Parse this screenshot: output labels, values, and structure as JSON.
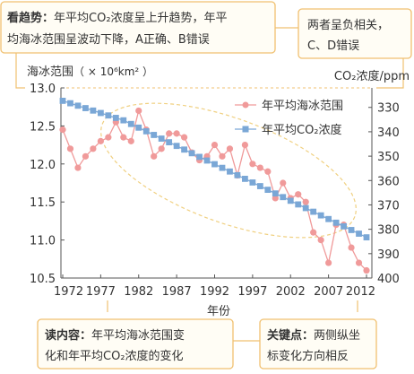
{
  "chart_data": {
    "type": "line",
    "x_ticks": [
      1972,
      1977,
      1982,
      1987,
      1992,
      1997,
      2002,
      2007,
      2012
    ],
    "x_label": "年份",
    "y_left": {
      "label_main": "海冰范围",
      "label_unit": "（ × 10⁶km² ）",
      "ticks": [
        "13.0",
        "12.5",
        "12.0",
        "11.5",
        "11.0",
        "10.5"
      ],
      "range": [
        10.5,
        13.0
      ]
    },
    "y_right": {
      "label": "CO₂浓度/ppm",
      "ticks": [
        "330",
        "340",
        "350",
        "360",
        "370",
        "380",
        "390",
        "400"
      ],
      "range": [
        322,
        400
      ]
    },
    "series": [
      {
        "name": "年平均海冰范围",
        "axis": "left",
        "color": "#f09a9a",
        "marker": "circle",
        "x": [
          1972,
          1973,
          1974,
          1975,
          1976,
          1977,
          1978,
          1979,
          1980,
          1981,
          1982,
          1983,
          1984,
          1985,
          1986,
          1987,
          1988,
          1989,
          1990,
          1991,
          1992,
          1993,
          1994,
          1995,
          1996,
          1997,
          1998,
          1999,
          2000,
          2001,
          2002,
          2003,
          2004,
          2005,
          2006,
          2007,
          2008,
          2009,
          2010,
          2011,
          2012
        ],
        "values": [
          12.45,
          12.2,
          11.95,
          12.1,
          12.2,
          12.3,
          12.35,
          12.55,
          12.35,
          12.3,
          12.7,
          12.45,
          12.1,
          12.2,
          12.4,
          12.4,
          12.35,
          12.15,
          12.05,
          12.1,
          12.25,
          12.1,
          12.2,
          11.85,
          12.25,
          12.0,
          11.95,
          11.9,
          11.55,
          11.75,
          11.55,
          11.6,
          11.5,
          11.1,
          11.0,
          10.7,
          11.2,
          11.2,
          10.9,
          10.7,
          10.6
        ]
      },
      {
        "name": "年平均CO₂浓度",
        "axis": "right",
        "color": "#7aa7d6",
        "marker": "square",
        "x": [
          1972,
          1973,
          1974,
          1975,
          1976,
          1977,
          1978,
          1979,
          1980,
          1981,
          1982,
          1983,
          1984,
          1985,
          1986,
          1987,
          1988,
          1989,
          1990,
          1991,
          1992,
          1993,
          1994,
          1995,
          1996,
          1997,
          1998,
          1999,
          2000,
          2001,
          2002,
          2003,
          2004,
          2005,
          2006,
          2007,
          2008,
          2009,
          2010,
          2011,
          2012
        ],
        "values": [
          327.3,
          328.3,
          329.3,
          330.3,
          331.3,
          332.3,
          333.3,
          334.3,
          335.3,
          336.8,
          338.3,
          339.8,
          341.3,
          342.8,
          344.3,
          345.8,
          347.3,
          348.8,
          350.3,
          351.8,
          353.3,
          354.8,
          356.3,
          357.8,
          359.3,
          360.8,
          362.3,
          363.8,
          365.3,
          366.8,
          368.3,
          369.8,
          371.3,
          372.8,
          374.3,
          375.8,
          377.3,
          378.8,
          380.3,
          381.8,
          383.3
        ]
      }
    ]
  },
  "notes": {
    "trend": {
      "label": "看趋势：",
      "line1": "年平均CO₂浓度呈上升趋势，年平",
      "line2": "均海冰范围呈波动下降，A正确、B错误"
    },
    "correlation": {
      "line1": "两者呈负相关，",
      "line2": "C、D错误"
    },
    "content": {
      "label": "读内容：",
      "line1": "年平均海冰范围变",
      "line2": "化和年平均CO₂浓度的变化"
    },
    "key": {
      "label": "关键点：",
      "line1": "两侧纵坐",
      "line2": "标变化方向相反"
    }
  },
  "colors": {
    "note_border": "#f0c070",
    "ellipse": "#f0d080",
    "sea_ice": "#f09a9a",
    "co2": "#7aa7d6"
  }
}
